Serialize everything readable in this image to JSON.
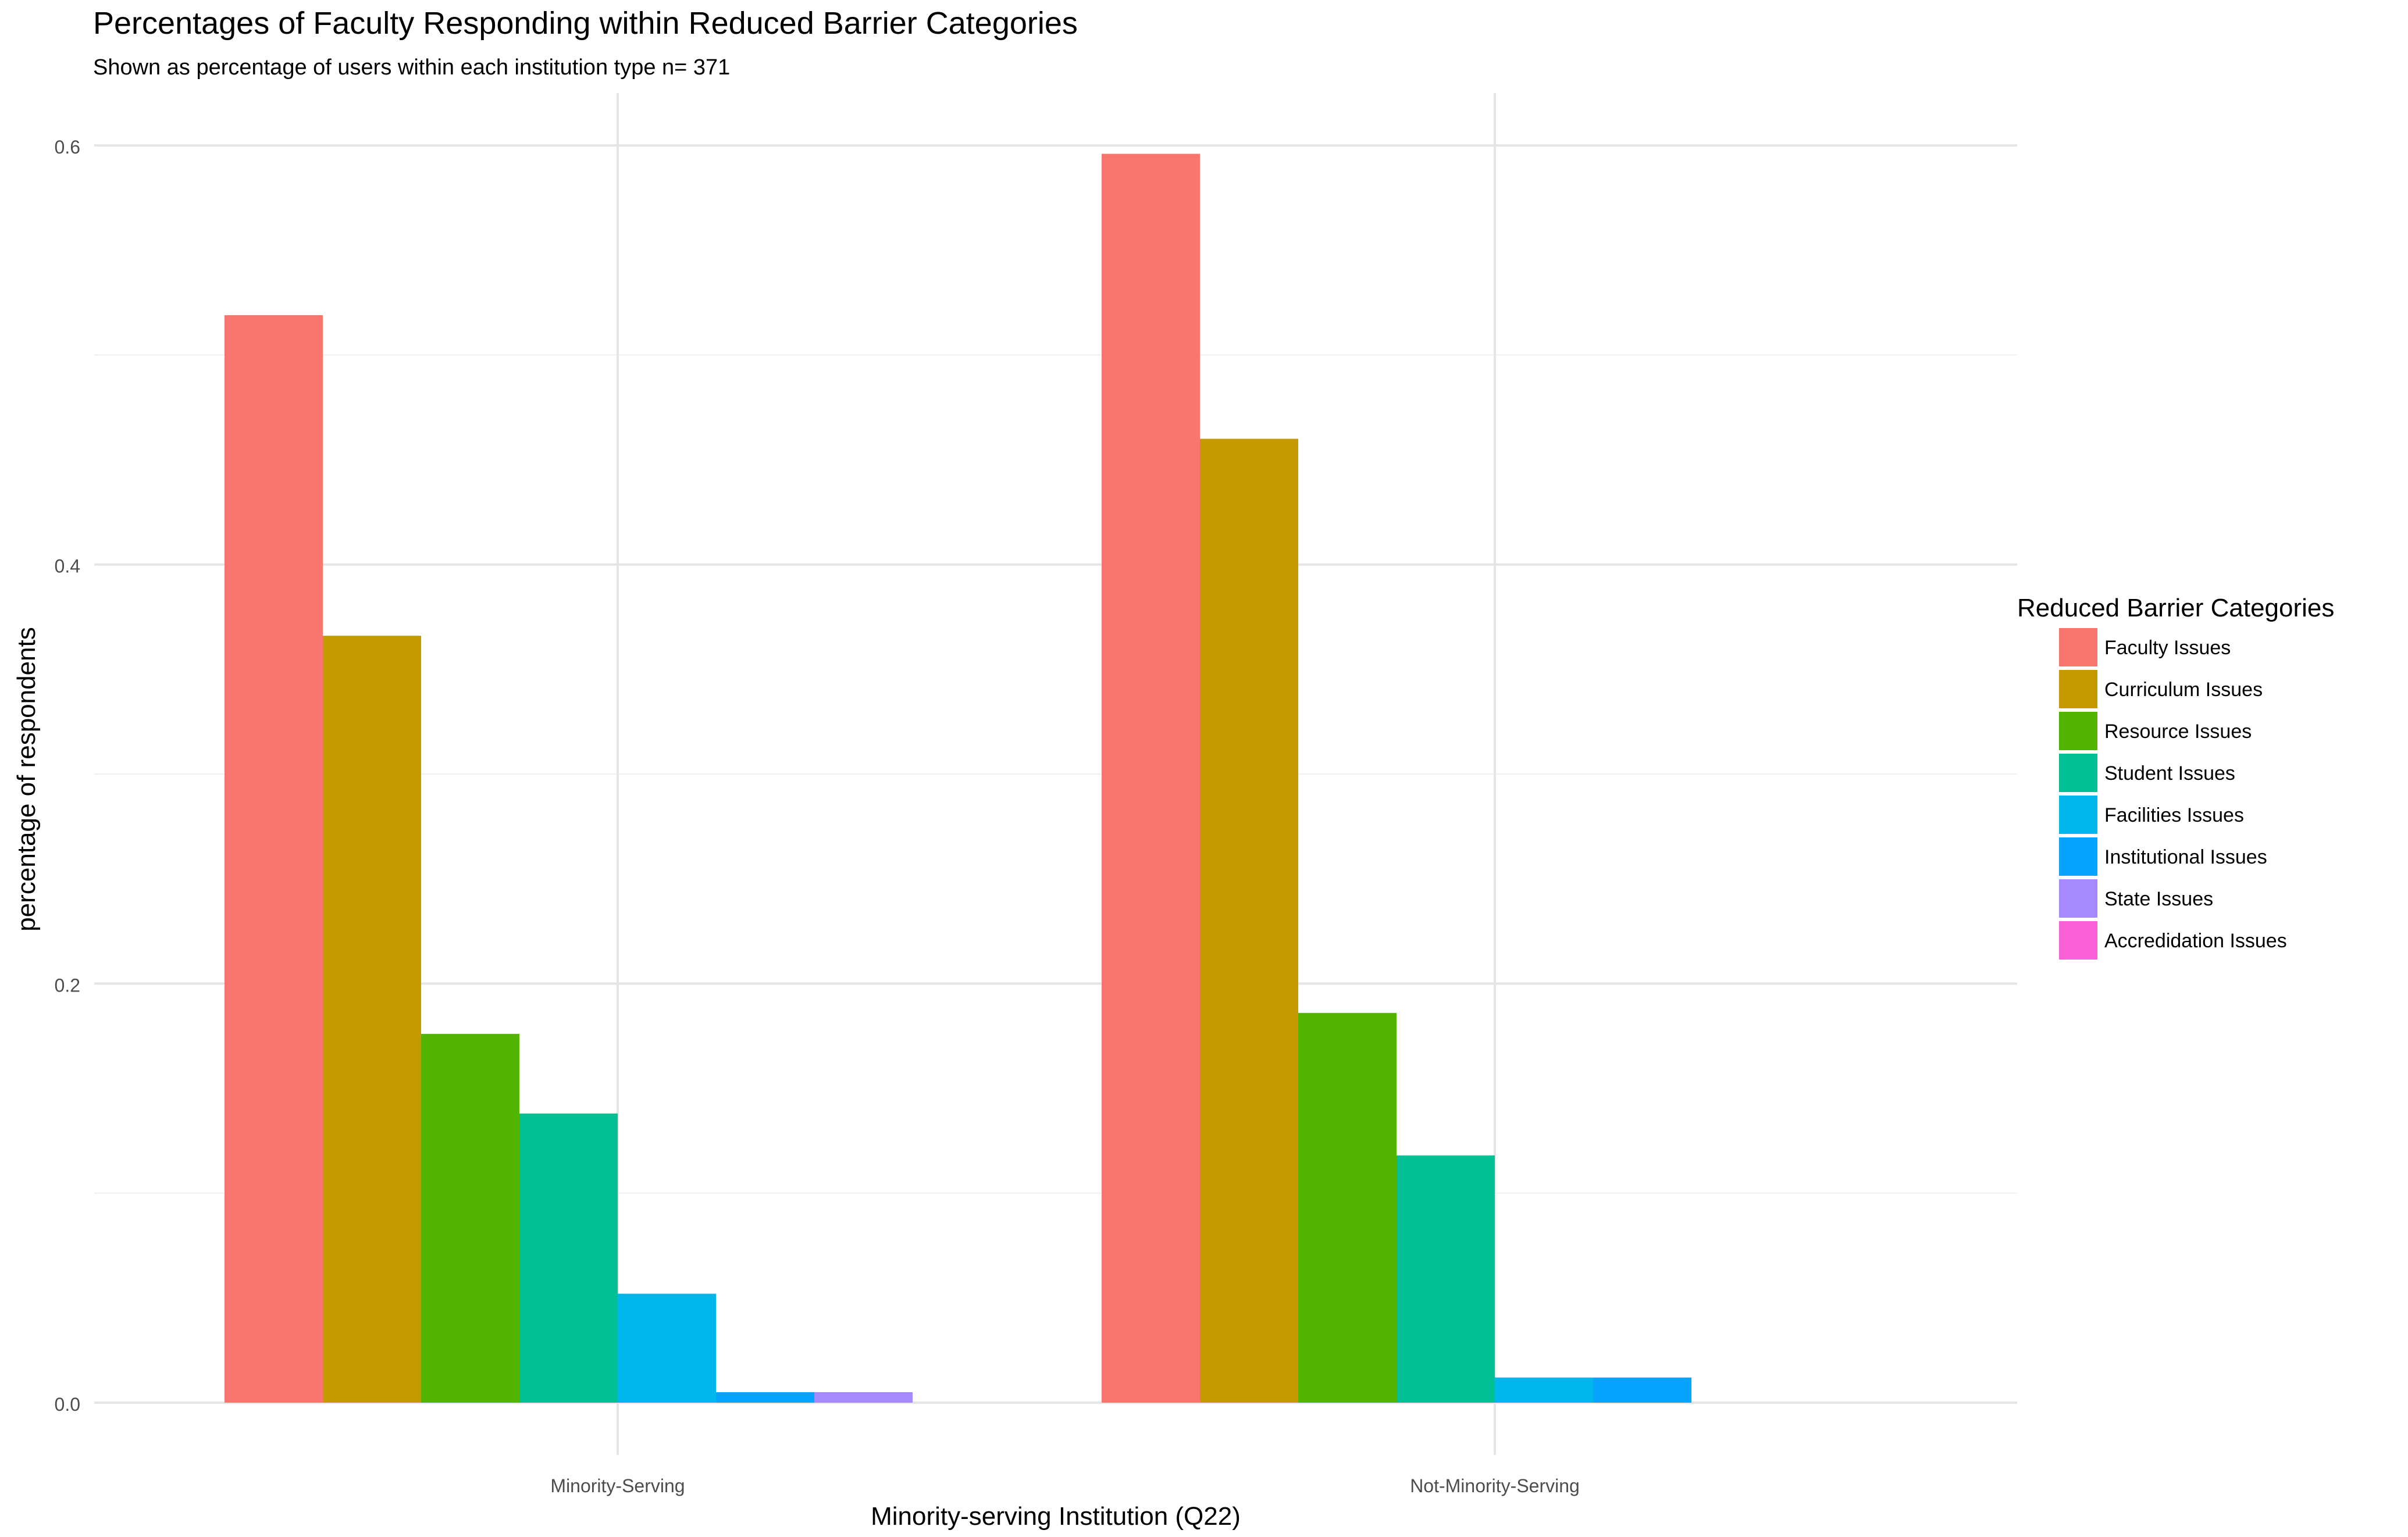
{
  "chart_data": {
    "type": "bar",
    "title": "Percentages of Faculty Responding within Reduced Barrier Categories",
    "subtitle": "Shown as percentage of users within each institution type n= 371",
    "xlabel": "Minority-serving Institution (Q22)",
    "ylabel": "percentage of respondents",
    "ylim": [
      0,
      0.625
    ],
    "y_ticks": [
      "0.0",
      "0.2",
      "0.4",
      "0.6"
    ],
    "grid": true,
    "legend_position": "right",
    "legend_title": "Reduced Barrier Categories",
    "categories": [
      "Minority-Serving",
      "Not-Minority-Serving"
    ],
    "series": [
      {
        "name": "Faculty Issues",
        "color": "#F8766D",
        "values": [
          0.519,
          0.596
        ]
      },
      {
        "name": "Curriculum Issues",
        "color": "#C49A00",
        "values": [
          0.366,
          0.46
        ]
      },
      {
        "name": "Resource Issues",
        "color": "#53B400",
        "values": [
          0.176,
          0.186
        ]
      },
      {
        "name": "Student Issues",
        "color": "#00C094",
        "values": [
          0.138,
          0.118
        ]
      },
      {
        "name": "Facilities Issues",
        "color": "#00B6EB",
        "values": [
          0.052,
          0.012
        ]
      },
      {
        "name": "Institutional Issues",
        "color": "#06A4FF",
        "values": [
          0.005,
          0.012
        ]
      },
      {
        "name": "State Issues",
        "color": "#A58AFF",
        "values": [
          0.005,
          0.0
        ]
      },
      {
        "name": "Accredidation Issues",
        "color": "#FB61D7",
        "values": [
          0.0,
          0.0
        ]
      }
    ]
  }
}
